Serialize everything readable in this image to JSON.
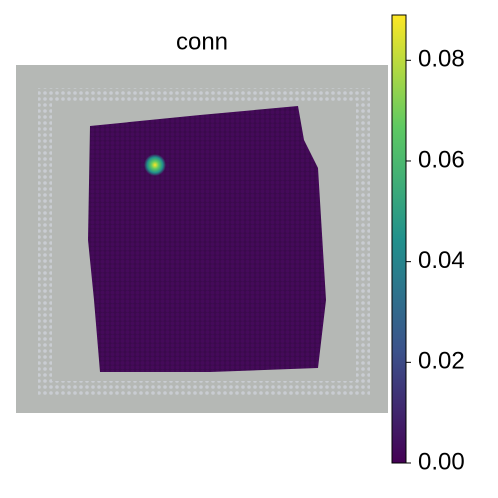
{
  "chart_data": {
    "type": "spatial",
    "title": "conn",
    "colorbar": {
      "lim": [
        0,
        0.089
      ],
      "ticks": [
        {
          "value": 0,
          "label": "0.00"
        },
        {
          "value": 0.02,
          "label": "0.02"
        },
        {
          "value": 0.04,
          "label": "0.04"
        },
        {
          "value": 0.06,
          "label": "0.06"
        },
        {
          "value": 0.08,
          "label": "0.08"
        }
      ],
      "colors": [
        "#440154",
        "#3b528b",
        "#21918c",
        "#5ec962",
        "#fde725"
      ]
    }
  }
}
